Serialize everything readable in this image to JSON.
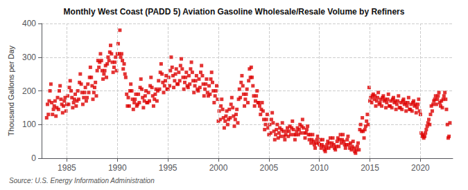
{
  "chart_data": {
    "type": "scatter",
    "title": "Monthly West Coast (PADD 5) Aviation Gasoline Wholesale/Resale Volume by Refiners",
    "ylabel": "Thousand Gallons per Day",
    "annotation": "Source: U.S. Energy Information Administration",
    "color": "#dd0000",
    "marker": "square",
    "grid": true,
    "xlim": [
      1982.5,
      2023.2
    ],
    "ylim": [
      0,
      400
    ],
    "xticks": [
      1985,
      1990,
      1995,
      2000,
      2005,
      2010,
      2015,
      2020
    ],
    "yticks": [
      0,
      100,
      200,
      300,
      400
    ],
    "x": [
      1983.0,
      1983.08,
      1983.17,
      1983.25,
      1983.33,
      1983.42,
      1983.5,
      1983.58,
      1983.67,
      1983.75,
      1983.83,
      1983.92,
      1984.0,
      1984.08,
      1984.17,
      1984.25,
      1984.33,
      1984.42,
      1984.5,
      1984.58,
      1984.67,
      1984.75,
      1984.83,
      1984.92,
      1985.0,
      1985.08,
      1985.17,
      1985.25,
      1985.33,
      1985.42,
      1985.5,
      1985.58,
      1985.67,
      1985.75,
      1985.83,
      1985.92,
      1986.0,
      1986.08,
      1986.17,
      1986.25,
      1986.33,
      1986.42,
      1986.5,
      1986.58,
      1986.67,
      1986.75,
      1986.83,
      1986.92,
      1987.0,
      1987.08,
      1987.17,
      1987.25,
      1987.33,
      1987.42,
      1987.5,
      1987.58,
      1987.67,
      1987.75,
      1987.83,
      1987.92,
      1988.0,
      1988.08,
      1988.17,
      1988.25,
      1988.33,
      1988.42,
      1988.5,
      1988.58,
      1988.67,
      1988.75,
      1988.83,
      1988.92,
      1989.0,
      1989.08,
      1989.17,
      1989.25,
      1989.33,
      1989.42,
      1989.5,
      1989.58,
      1989.67,
      1989.75,
      1989.83,
      1989.92,
      1990.0,
      1990.08,
      1990.17,
      1990.25,
      1990.33,
      1990.42,
      1990.5,
      1990.58,
      1990.67,
      1990.75,
      1990.83,
      1990.92,
      1991.0,
      1991.08,
      1991.17,
      1991.25,
      1991.33,
      1991.42,
      1991.5,
      1991.58,
      1991.67,
      1991.75,
      1991.83,
      1991.92,
      1992.0,
      1992.08,
      1992.17,
      1992.25,
      1992.33,
      1992.42,
      1992.5,
      1992.58,
      1992.67,
      1992.75,
      1992.83,
      1992.92,
      1993.0,
      1993.08,
      1993.17,
      1993.25,
      1993.33,
      1993.42,
      1993.5,
      1993.58,
      1993.67,
      1993.75,
      1993.83,
      1993.92,
      1994.0,
      1994.08,
      1994.17,
      1994.25,
      1994.33,
      1994.42,
      1994.5,
      1994.58,
      1994.67,
      1994.75,
      1994.83,
      1994.92,
      1995.0,
      1995.08,
      1995.17,
      1995.25,
      1995.33,
      1995.42,
      1995.5,
      1995.58,
      1995.67,
      1995.75,
      1995.83,
      1995.92,
      1996.0,
      1996.08,
      1996.17,
      1996.25,
      1996.33,
      1996.42,
      1996.5,
      1996.58,
      1996.67,
      1996.75,
      1996.83,
      1996.92,
      1997.0,
      1997.08,
      1997.17,
      1997.25,
      1997.33,
      1997.42,
      1997.5,
      1997.58,
      1997.67,
      1997.75,
      1997.83,
      1997.92,
      1998.0,
      1998.08,
      1998.17,
      1998.25,
      1998.33,
      1998.42,
      1998.5,
      1998.58,
      1998.67,
      1998.75,
      1998.83,
      1998.92,
      1999.0,
      1999.08,
      1999.17,
      1999.25,
      1999.33,
      1999.42,
      1999.5,
      1999.58,
      1999.67,
      1999.75,
      1999.83,
      1999.92,
      2000.0,
      2000.08,
      2000.17,
      2000.25,
      2000.33,
      2000.42,
      2000.5,
      2000.58,
      2000.67,
      2000.75,
      2000.83,
      2000.92,
      2001.0,
      2001.08,
      2001.17,
      2001.25,
      2001.33,
      2001.42,
      2001.5,
      2001.58,
      2001.67,
      2001.75,
      2001.83,
      2001.92,
      2002.0,
      2002.08,
      2002.17,
      2002.25,
      2002.33,
      2002.42,
      2002.5,
      2002.58,
      2002.67,
      2002.75,
      2002.83,
      2002.92,
      2003.0,
      2003.08,
      2003.17,
      2003.25,
      2003.33,
      2003.42,
      2003.5,
      2003.58,
      2003.67,
      2003.75,
      2003.83,
      2003.92,
      2004.0,
      2004.08,
      2004.17,
      2004.25,
      2004.33,
      2004.42,
      2004.5,
      2004.58,
      2004.67,
      2004.75,
      2004.83,
      2004.92,
      2005.0,
      2005.08,
      2005.17,
      2005.25,
      2005.33,
      2005.42,
      2005.5,
      2005.58,
      2005.67,
      2005.75,
      2005.83,
      2005.92,
      2006.0,
      2006.08,
      2006.17,
      2006.25,
      2006.33,
      2006.42,
      2006.5,
      2006.58,
      2006.67,
      2006.75,
      2006.83,
      2006.92,
      2007.0,
      2007.08,
      2007.17,
      2007.25,
      2007.33,
      2007.42,
      2007.5,
      2007.58,
      2007.67,
      2007.75,
      2007.83,
      2007.92,
      2008.0,
      2008.08,
      2008.17,
      2008.25,
      2008.33,
      2008.42,
      2008.5,
      2008.58,
      2008.67,
      2008.75,
      2008.83,
      2008.92,
      2009.0,
      2009.08,
      2009.17,
      2009.25,
      2009.33,
      2009.42,
      2009.5,
      2009.58,
      2009.67,
      2009.75,
      2009.83,
      2009.92,
      2010.0,
      2010.08,
      2010.17,
      2010.25,
      2010.33,
      2010.42,
      2010.5,
      2010.58,
      2010.67,
      2010.75,
      2010.83,
      2010.92,
      2011.0,
      2011.08,
      2011.17,
      2011.25,
      2011.33,
      2011.42,
      2011.5,
      2011.58,
      2011.67,
      2011.75,
      2011.83,
      2011.92,
      2012.0,
      2012.08,
      2012.17,
      2012.25,
      2012.33,
      2012.42,
      2012.5,
      2012.58,
      2012.67,
      2012.75,
      2012.83,
      2012.92,
      2013.0,
      2013.08,
      2013.17,
      2013.25,
      2013.33,
      2013.42,
      2013.5,
      2013.58,
      2013.67,
      2013.75,
      2013.83,
      2013.92,
      2014.0,
      2014.08,
      2014.17,
      2014.25,
      2014.33,
      2014.42,
      2014.5,
      2014.58,
      2014.67,
      2014.75,
      2014.83,
      2014.92,
      2015.0,
      2015.08,
      2015.17,
      2015.25,
      2015.33,
      2015.42,
      2015.5,
      2015.58,
      2015.67,
      2015.75,
      2015.83,
      2015.92,
      2016.0,
      2016.08,
      2016.17,
      2016.25,
      2016.33,
      2016.42,
      2016.5,
      2016.58,
      2016.67,
      2016.75,
      2016.83,
      2016.92,
      2017.0,
      2017.08,
      2017.17,
      2017.25,
      2017.33,
      2017.42,
      2017.5,
      2017.58,
      2017.67,
      2017.75,
      2017.83,
      2017.92,
      2018.0,
      2018.08,
      2018.17,
      2018.25,
      2018.33,
      2018.42,
      2018.5,
      2018.58,
      2018.67,
      2018.75,
      2018.83,
      2018.92,
      2019.0,
      2019.08,
      2019.17,
      2019.25,
      2019.33,
      2019.42,
      2019.5,
      2019.58,
      2019.67,
      2019.75,
      2019.83,
      2019.92,
      2020.0,
      2020.08,
      2020.17,
      2020.25,
      2020.33,
      2020.42,
      2020.5,
      2020.58,
      2020.67,
      2020.75,
      2020.83,
      2020.92,
      2021.0,
      2021.08,
      2021.17,
      2021.25,
      2021.33,
      2021.42,
      2021.5,
      2021.58,
      2021.67,
      2021.75,
      2021.83,
      2021.92,
      2022.0,
      2022.08,
      2022.17,
      2022.25,
      2022.33,
      2022.42,
      2022.5,
      2022.58,
      2022.67,
      2022.75,
      2022.83,
      2022.92
    ],
    "values": [
      120,
      160,
      130,
      170,
      200,
      220,
      165,
      130,
      145,
      155,
      170,
      125,
      150,
      180,
      145,
      200,
      215,
      175,
      160,
      135,
      155,
      170,
      180,
      140,
      160,
      185,
      160,
      210,
      230,
      200,
      180,
      150,
      165,
      175,
      190,
      155,
      170,
      200,
      175,
      225,
      250,
      220,
      195,
      160,
      180,
      195,
      210,
      170,
      180,
      220,
      195,
      240,
      270,
      240,
      215,
      175,
      195,
      210,
      225,
      185,
      260,
      290,
      270,
      285,
      310,
      290,
      260,
      235,
      250,
      260,
      275,
      240,
      280,
      300,
      290,
      315,
      335,
      310,
      285,
      255,
      270,
      285,
      300,
      260,
      310,
      340,
      310,
      380,
      300,
      310,
      290,
      265,
      280,
      250,
      240,
      190,
      155,
      180,
      155,
      200,
      220,
      200,
      175,
      145,
      165,
      175,
      190,
      155,
      160,
      190,
      165,
      210,
      235,
      205,
      180,
      150,
      170,
      185,
      200,
      165,
      165,
      195,
      170,
      215,
      240,
      210,
      185,
      155,
      175,
      190,
      205,
      170,
      200,
      230,
      205,
      255,
      280,
      250,
      225,
      195,
      215,
      230,
      245,
      205,
      205,
      240,
      215,
      260,
      300,
      270,
      245,
      210,
      230,
      250,
      265,
      220,
      220,
      255,
      230,
      275,
      295,
      265,
      240,
      205,
      225,
      240,
      255,
      215,
      210,
      245,
      220,
      265,
      285,
      255,
      230,
      195,
      215,
      230,
      245,
      205,
      200,
      235,
      210,
      255,
      275,
      245,
      220,
      185,
      205,
      220,
      235,
      195,
      185,
      215,
      190,
      235,
      255,
      225,
      200,
      165,
      185,
      200,
      215,
      175,
      110,
      140,
      115,
      155,
      175,
      145,
      120,
      90,
      110,
      125,
      140,
      100,
      115,
      145,
      120,
      160,
      180,
      150,
      125,
      95,
      115,
      130,
      145,
      105,
      175,
      205,
      180,
      225,
      245,
      215,
      190,
      155,
      175,
      190,
      205,
      165,
      230,
      265,
      240,
      270,
      240,
      215,
      185,
      155,
      170,
      185,
      200,
      165,
      165,
      155,
      130,
      145,
      165,
      140,
      115,
      85,
      100,
      115,
      130,
      90,
      70,
      100,
      75,
      115,
      135,
      105,
      80,
      55,
      70,
      85,
      100,
      60,
      75,
      90,
      65,
      85,
      105,
      80,
      65,
      55,
      70,
      80,
      90,
      65,
      80,
      95,
      70,
      90,
      110,
      85,
      70,
      55,
      70,
      80,
      90,
      70,
      85,
      100,
      75,
      95,
      115,
      90,
      75,
      60,
      75,
      85,
      95,
      70,
      55,
      70,
      45,
      55,
      70,
      50,
      40,
      30,
      45,
      55,
      65,
      45,
      40,
      55,
      30,
      40,
      55,
      35,
      25,
      20,
      30,
      40,
      50,
      30,
      45,
      60,
      35,
      45,
      60,
      40,
      30,
      25,
      35,
      50,
      60,
      35,
      55,
      70,
      45,
      55,
      70,
      50,
      40,
      30,
      40,
      55,
      65,
      40,
      30,
      45,
      25,
      35,
      50,
      30,
      20,
      15,
      25,
      35,
      45,
      25,
      85,
      100,
      80,
      120,
      80,
      60,
      85,
      95,
      110,
      130,
      100,
      210,
      170,
      180,
      165,
      185,
      190,
      175,
      185,
      155,
      170,
      180,
      195,
      160,
      165,
      175,
      155,
      180,
      185,
      170,
      175,
      150,
      165,
      175,
      190,
      155,
      155,
      170,
      150,
      175,
      180,
      165,
      170,
      145,
      160,
      170,
      185,
      150,
      150,
      165,
      145,
      170,
      175,
      160,
      165,
      140,
      155,
      165,
      180,
      145,
      145,
      160,
      140,
      165,
      170,
      155,
      160,
      135,
      150,
      160,
      175,
      140,
      130,
      75,
      65,
      70,
      60,
      65,
      75,
      85,
      95,
      105,
      115,
      100,
      130,
      155,
      140,
      160,
      170,
      175,
      185,
      160,
      175,
      185,
      195,
      165,
      155,
      170,
      150,
      175,
      185,
      195,
      175,
      145,
      100,
      60,
      65,
      105
    ]
  }
}
